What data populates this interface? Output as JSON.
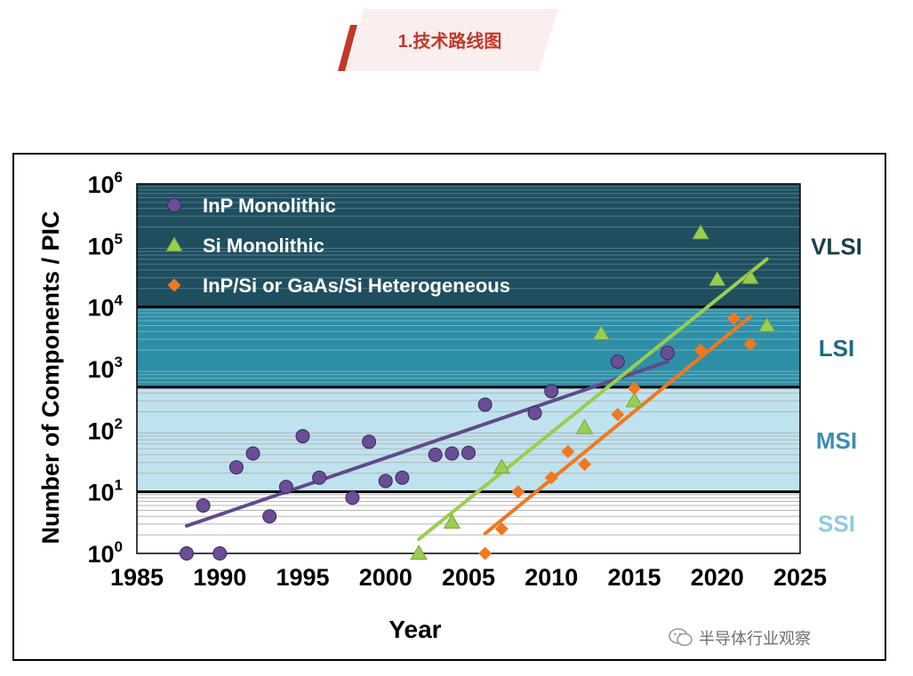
{
  "header": {
    "title": "1.技术路线图",
    "accent": "#c0392b",
    "tab_bg": "#fbeeee"
  },
  "watermark": {
    "icon": "wechat-icon",
    "text": "半导体行业观察"
  },
  "chart_data": {
    "type": "scatter",
    "title": "",
    "xlabel": "Year",
    "ylabel": "Number of Components / PIC",
    "xlim": [
      1985,
      2025
    ],
    "ylim": [
      1,
      1000000
    ],
    "yscale": "log",
    "x_ticks": [
      "1985",
      "1990",
      "1995",
      "2000",
      "2005",
      "2010",
      "2015",
      "2020",
      "2025"
    ],
    "y_ticks": [
      {
        "base": "10",
        "exp": "0"
      },
      {
        "base": "10",
        "exp": "1"
      },
      {
        "base": "10",
        "exp": "2"
      },
      {
        "base": "10",
        "exp": "3"
      },
      {
        "base": "10",
        "exp": "4"
      },
      {
        "base": "10",
        "exp": "5"
      },
      {
        "base": "10",
        "exp": "6"
      }
    ],
    "grid": true,
    "legend_position": "top-left",
    "regions": [
      {
        "label": "SSI",
        "from": 1,
        "to": 10,
        "color": "#ffffff",
        "label_color": "#8ecae6"
      },
      {
        "label": "MSI",
        "from": 10,
        "to": 500,
        "color": "#bfe3ee",
        "label_color": "#3a8fb0"
      },
      {
        "label": "LSI",
        "from": 500,
        "to": 10000,
        "color": "#2e8fa6",
        "label_color": "#1d6a80"
      },
      {
        "label": "VLSI",
        "from": 10000,
        "to": 1000000,
        "color": "#1f4e5f",
        "label_color": "#1b3e4c"
      }
    ],
    "series": [
      {
        "name": "InP Monolithic",
        "marker": "circle",
        "color": "#6a4d96",
        "points": [
          [
            1988,
            1
          ],
          [
            1989,
            6
          ],
          [
            1990,
            1
          ],
          [
            1991,
            25
          ],
          [
            1992,
            42
          ],
          [
            1993,
            4
          ],
          [
            1994,
            12
          ],
          [
            1995,
            80
          ],
          [
            1996,
            17
          ],
          [
            1998,
            8
          ],
          [
            1999,
            65
          ],
          [
            2000,
            15
          ],
          [
            2001,
            17
          ],
          [
            2003,
            40
          ],
          [
            2004,
            42
          ],
          [
            2005,
            43
          ],
          [
            2006,
            260
          ],
          [
            2009,
            190
          ],
          [
            2010,
            430
          ],
          [
            2014,
            1300
          ],
          [
            2017,
            1800
          ]
        ],
        "trend": [
          [
            1988,
            2.8
          ],
          [
            2017,
            1300
          ]
        ],
        "trend_color": "#5f4a8b"
      },
      {
        "name": "Si Monolithic",
        "marker": "triangle",
        "color": "#9acd50",
        "points": [
          [
            2002,
            1
          ],
          [
            2004,
            3.2
          ],
          [
            2007,
            25
          ],
          [
            2012,
            110
          ],
          [
            2013,
            3700
          ],
          [
            2015,
            300
          ],
          [
            2019,
            160000
          ],
          [
            2020,
            28000
          ],
          [
            2022,
            30000
          ],
          [
            2023,
            5000
          ]
        ],
        "trend": [
          [
            2002,
            1.7
          ],
          [
            2023,
            60000
          ]
        ],
        "trend_color": "#9acd50"
      },
      {
        "name": "InP/Si or GaAs/Si Heterogeneous",
        "marker": "diamond",
        "color": "#f07820",
        "points": [
          [
            2006,
            1
          ],
          [
            2007,
            2.5
          ],
          [
            2008,
            10
          ],
          [
            2010,
            17
          ],
          [
            2011,
            45
          ],
          [
            2012,
            28
          ],
          [
            2014,
            180
          ],
          [
            2015,
            480
          ],
          [
            2019,
            2000
          ],
          [
            2021,
            6500
          ],
          [
            2022,
            2500
          ]
        ],
        "trend": [
          [
            2006,
            2.1
          ],
          [
            2022,
            7000
          ]
        ],
        "trend_color": "#f07820"
      }
    ]
  }
}
